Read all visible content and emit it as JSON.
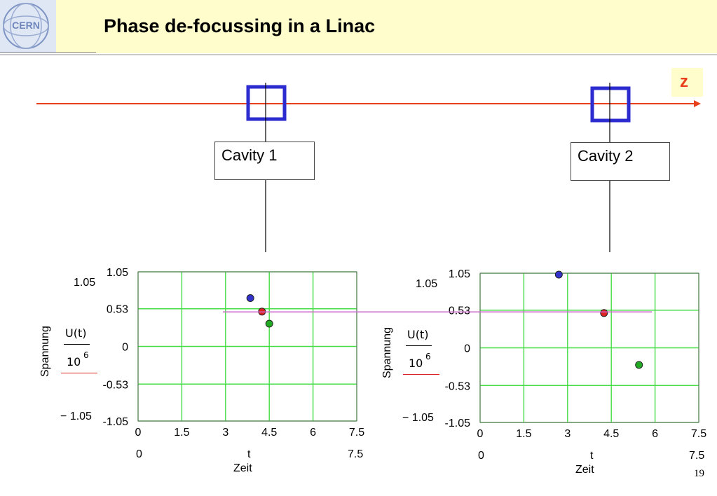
{
  "slide": {
    "title": "Phase de-focussing in a Linac",
    "axis_label": "z",
    "page_number": "19",
    "logo_text": "CERN"
  },
  "cavities": [
    {
      "label": "Cavity 1"
    },
    {
      "label": "Cavity 2"
    }
  ],
  "colors": {
    "beam_line": "#e8401c",
    "cavity_outline": "#2b2bcf",
    "grid": "#44dd44",
    "sync_line": "#cc66cc",
    "header": "#fefdcb"
  },
  "chart_data": [
    {
      "type": "scatter",
      "xlabel": "Zeit",
      "ylabel": "Spannung",
      "y_expression": {
        "numerator": "U(t)",
        "base": "10",
        "exponent": "6"
      },
      "x_var": "t",
      "xlim": [
        0,
        7.5
      ],
      "ylim": [
        -1.05,
        1.05
      ],
      "x_ticks": [
        "0",
        "1.5",
        "3",
        "4.5",
        "6",
        "7.5"
      ],
      "y_ticks": [
        "1.05",
        "0.53",
        "0",
        "-0.53",
        "-1.05"
      ],
      "y_range_labels": {
        "top": "1.05",
        "bottom": "− 1.05"
      },
      "x_range_labels": {
        "left": "0",
        "right": "7.5"
      },
      "points": [
        {
          "x": 3.85,
          "y": 0.68,
          "color": "#3333cc"
        },
        {
          "x": 4.25,
          "y": 0.49,
          "color": "#dd2222"
        },
        {
          "x": 4.5,
          "y": 0.32,
          "color": "#22aa22"
        }
      ],
      "grid": true
    },
    {
      "type": "scatter",
      "xlabel": "Zeit",
      "ylabel": "Spannung",
      "y_expression": {
        "numerator": "U(t)",
        "base": "10",
        "exponent": "6"
      },
      "x_var": "t",
      "xlim": [
        0,
        7.5
      ],
      "ylim": [
        -1.05,
        1.05
      ],
      "x_ticks": [
        "0",
        "1.5",
        "3",
        "4.5",
        "6",
        "7.5"
      ],
      "y_ticks": [
        "1.05",
        "0.53",
        "0",
        "-0.53",
        "-1.05"
      ],
      "y_range_labels": {
        "top": "1.05",
        "bottom": "− 1.05"
      },
      "x_range_labels": {
        "left": "0",
        "right": "7.5"
      },
      "points": [
        {
          "x": 2.7,
          "y": 1.03,
          "color": "#3333cc"
        },
        {
          "x": 4.25,
          "y": 0.49,
          "color": "#dd2222"
        },
        {
          "x": 5.45,
          "y": -0.24,
          "color": "#22aa22"
        }
      ],
      "grid": true
    }
  ]
}
